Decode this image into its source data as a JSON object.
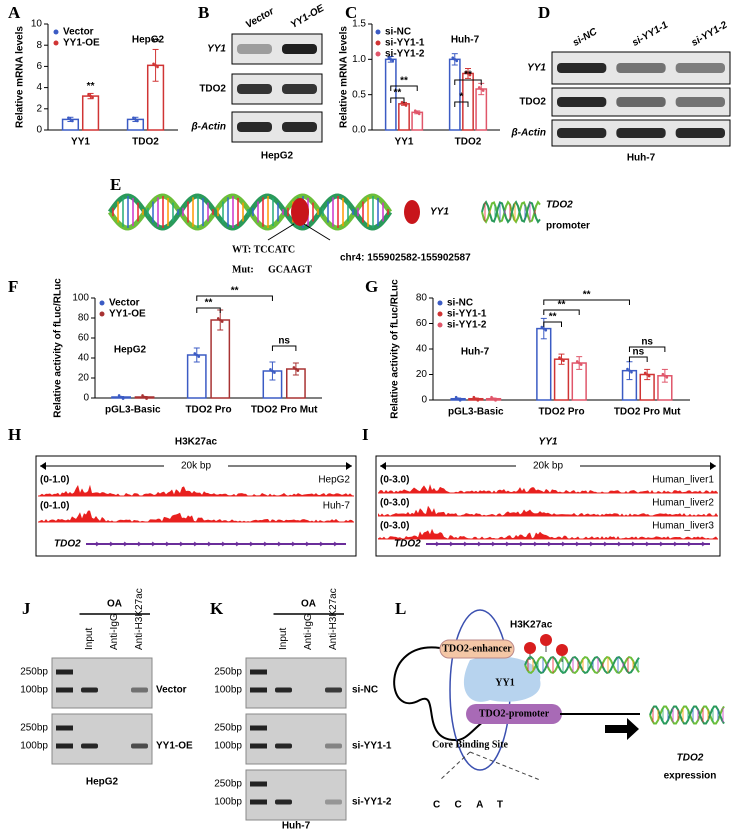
{
  "panel_labels": [
    "A",
    "B",
    "C",
    "D",
    "E",
    "F",
    "G",
    "H",
    "I",
    "J",
    "K",
    "L"
  ],
  "chart_data": [
    {
      "type": "bar",
      "y_label": "Relative mRNA levels",
      "annotation": "HepG2",
      "categories": [
        "YY1",
        "TDO2"
      ],
      "series": [
        {
          "name": "Vector",
          "color": "#3b5bc4",
          "values": [
            1,
            1
          ],
          "errors": [
            0.2,
            0.2
          ]
        },
        {
          "name": "YY1-OE",
          "color": "#d03434",
          "values": [
            3.2,
            6.1
          ],
          "errors": [
            0.25,
            1.5
          ]
        }
      ],
      "ylim": [
        0,
        10
      ],
      "yticks": [
        0,
        2,
        4,
        6,
        8,
        10
      ],
      "significance": [
        "**",
        "**"
      ]
    },
    {
      "type": "bar",
      "y_label": "Relative mRNA levels",
      "annotation": "Huh-7",
      "categories": [
        "YY1",
        "TDO2"
      ],
      "series": [
        {
          "name": "si-NC",
          "color": "#3b5bc4",
          "values": [
            1.0,
            1.0
          ],
          "errors": [
            0.04,
            0.08
          ]
        },
        {
          "name": "si-YY1-1",
          "color": "#d03434",
          "values": [
            0.37,
            0.8
          ],
          "errors": [
            0.02,
            0.07
          ]
        },
        {
          "name": "si-YY1-2",
          "color": "#e0566a",
          "values": [
            0.25,
            0.58
          ],
          "errors": [
            0.02,
            0.08
          ]
        }
      ],
      "ylim": [
        0,
        1.5
      ],
      "yticks": [
        {
          "value": 0,
          "label": "0.0"
        },
        {
          "value": 0.5,
          "label": "0.5"
        },
        {
          "value": 1,
          "label": "1.0"
        },
        {
          "value": 1.5,
          "label": "1.5"
        }
      ],
      "significance": [
        "**",
        "**",
        "*",
        "**"
      ]
    },
    {
      "type": "bar",
      "y_label": "Relative activity of fLuc/RLuc",
      "annotation": "HepG2",
      "categories": [
        "pGL3-Basic",
        "TDO2 Pro",
        "TDO2 Pro Mut"
      ],
      "series": [
        {
          "name": "Vector",
          "color": "#3b5bc4",
          "values": [
            1,
            43,
            27
          ],
          "errors": [
            0.5,
            7,
            9
          ]
        },
        {
          "name": "YY1-OE",
          "color": "#a83232",
          "values": [
            1,
            78,
            29
          ],
          "errors": [
            0.5,
            10,
            6
          ]
        }
      ],
      "ylim": [
        0,
        100
      ],
      "yticks": [
        0,
        20,
        40,
        60,
        80,
        100
      ],
      "significance": [
        "**",
        "**",
        "ns"
      ]
    },
    {
      "type": "bar",
      "y_label": "Relative activity of fLuc/RLuc",
      "annotation": "Huh-7",
      "categories": [
        "pGL3-Basic",
        "TDO2 Pro",
        "TDO2 Pro Mut"
      ],
      "series": [
        {
          "name": "si-NC",
          "color": "#3b5bc4",
          "values": [
            1,
            56,
            23
          ],
          "errors": [
            0.5,
            8,
            7
          ]
        },
        {
          "name": "si-YY1-1",
          "color": "#d03434",
          "values": [
            1,
            32,
            20
          ],
          "errors": [
            0.5,
            4,
            4
          ]
        },
        {
          "name": "si-YY1-2",
          "color": "#e0566a",
          "values": [
            1,
            29,
            19
          ],
          "errors": [
            0.5,
            5,
            5
          ]
        }
      ],
      "ylim": [
        0,
        80
      ],
      "yticks": [
        0,
        20,
        40,
        60,
        80
      ],
      "significance": [
        "**",
        "**",
        "**",
        "ns",
        "ns"
      ]
    }
  ],
  "blot_B": {
    "lanes": [
      "Vector",
      "YY1-OE"
    ],
    "rows": [
      "YY1",
      "TDO2",
      "β-Actin"
    ],
    "cell": "HepG2"
  },
  "blot_D": {
    "lanes": [
      "si-NC",
      "si-YY1-1",
      "si-YY1-2"
    ],
    "rows": [
      "YY1",
      "TDO2",
      "β-Actin"
    ],
    "cell": "Huh-7"
  },
  "schematic_E": {
    "wt": "WT: TCCATC",
    "mut_label": "Mut:",
    "mut_seq": "GCAAGT",
    "locus": "chr4: 155902582-155902587",
    "legend_factor": "YY1",
    "legend_gene": "TDO2",
    "legend_region": "promoter"
  },
  "tracks_H": {
    "title": "H3K27ac",
    "scale": "20k bp",
    "gene": "TDO2",
    "tracks": [
      {
        "range": "(0-1.0)",
        "name": "HepG2"
      },
      {
        "range": "(0-1.0)",
        "name": "Huh-7"
      }
    ]
  },
  "tracks_I": {
    "title": "YY1",
    "scale": "20k bp",
    "gene": "TDO2",
    "tracks": [
      {
        "range": "(0-3.0)",
        "name": "Human_liver1"
      },
      {
        "range": "(0-3.0)",
        "name": "Human_liver2"
      },
      {
        "range": "(0-3.0)",
        "name": "Human_liver3"
      }
    ]
  },
  "gel_J": {
    "condition": "OA",
    "lanes": [
      "Input",
      "Anti-IgG",
      "Anti-H3K27ac"
    ],
    "cell": "HepG2",
    "rows": [
      {
        "markers": [
          "250bp",
          "100bp"
        ],
        "name": "Vector"
      },
      {
        "markers": [
          "250bp",
          "100bp"
        ],
        "name": "YY1-OE"
      }
    ]
  },
  "gel_K": {
    "condition": "OA",
    "lanes": [
      "Input",
      "Anti-IgG",
      "Anti-H3K27ac"
    ],
    "cell": "Huh-7",
    "rows": [
      {
        "markers": [
          "250bp",
          "100bp"
        ],
        "name": "si-NC"
      },
      {
        "markers": [
          "250bp",
          "100bp"
        ],
        "name": "si-YY1-1"
      },
      {
        "markers": [
          "250bp",
          "100bp"
        ],
        "name": "si-YY1-2"
      }
    ]
  },
  "model_L": {
    "mark": "H3K27ac",
    "enhancer": "TDO2-enhancer",
    "factor": "YY1",
    "promoter": "TDO2-promoter",
    "site": "Core Binding Site",
    "motif": "CCAT",
    "gene": "TDO2",
    "outcome": "expression"
  }
}
